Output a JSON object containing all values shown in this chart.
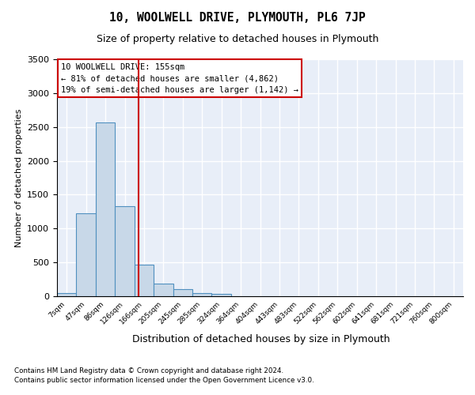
{
  "title1": "10, WOOLWELL DRIVE, PLYMOUTH, PL6 7JP",
  "title2": "Size of property relative to detached houses in Plymouth",
  "xlabel": "Distribution of detached houses by size in Plymouth",
  "ylabel": "Number of detached properties",
  "footnote1": "Contains HM Land Registry data © Crown copyright and database right 2024.",
  "footnote2": "Contains public sector information licensed under the Open Government Licence v3.0.",
  "annotation_line1": "10 WOOLWELL DRIVE: 155sqm",
  "annotation_line2": "← 81% of detached houses are smaller (4,862)",
  "annotation_line3": "19% of semi-detached houses are larger (1,142) →",
  "bar_color": "#c8d8e8",
  "bar_edge_color": "#5090c0",
  "vline_color": "#cc0000",
  "bg_color": "#e8eef8",
  "grid_color": "#ffffff",
  "annotation_box_edge": "#cc0000",
  "bin_labels": [
    "7sqm",
    "47sqm",
    "86sqm",
    "126sqm",
    "166sqm",
    "205sqm",
    "245sqm",
    "285sqm",
    "324sqm",
    "364sqm",
    "404sqm",
    "443sqm",
    "483sqm",
    "522sqm",
    "562sqm",
    "602sqm",
    "641sqm",
    "681sqm",
    "721sqm",
    "760sqm",
    "800sqm"
  ],
  "bin_values": [
    50,
    1220,
    2570,
    1330,
    470,
    190,
    100,
    50,
    35,
    5,
    0,
    0,
    0,
    0,
    0,
    0,
    0,
    0,
    0,
    0,
    0
  ],
  "vline_x": 3.725,
  "ylim": [
    0,
    3500
  ],
  "yticks": [
    0,
    500,
    1000,
    1500,
    2000,
    2500,
    3000,
    3500
  ]
}
